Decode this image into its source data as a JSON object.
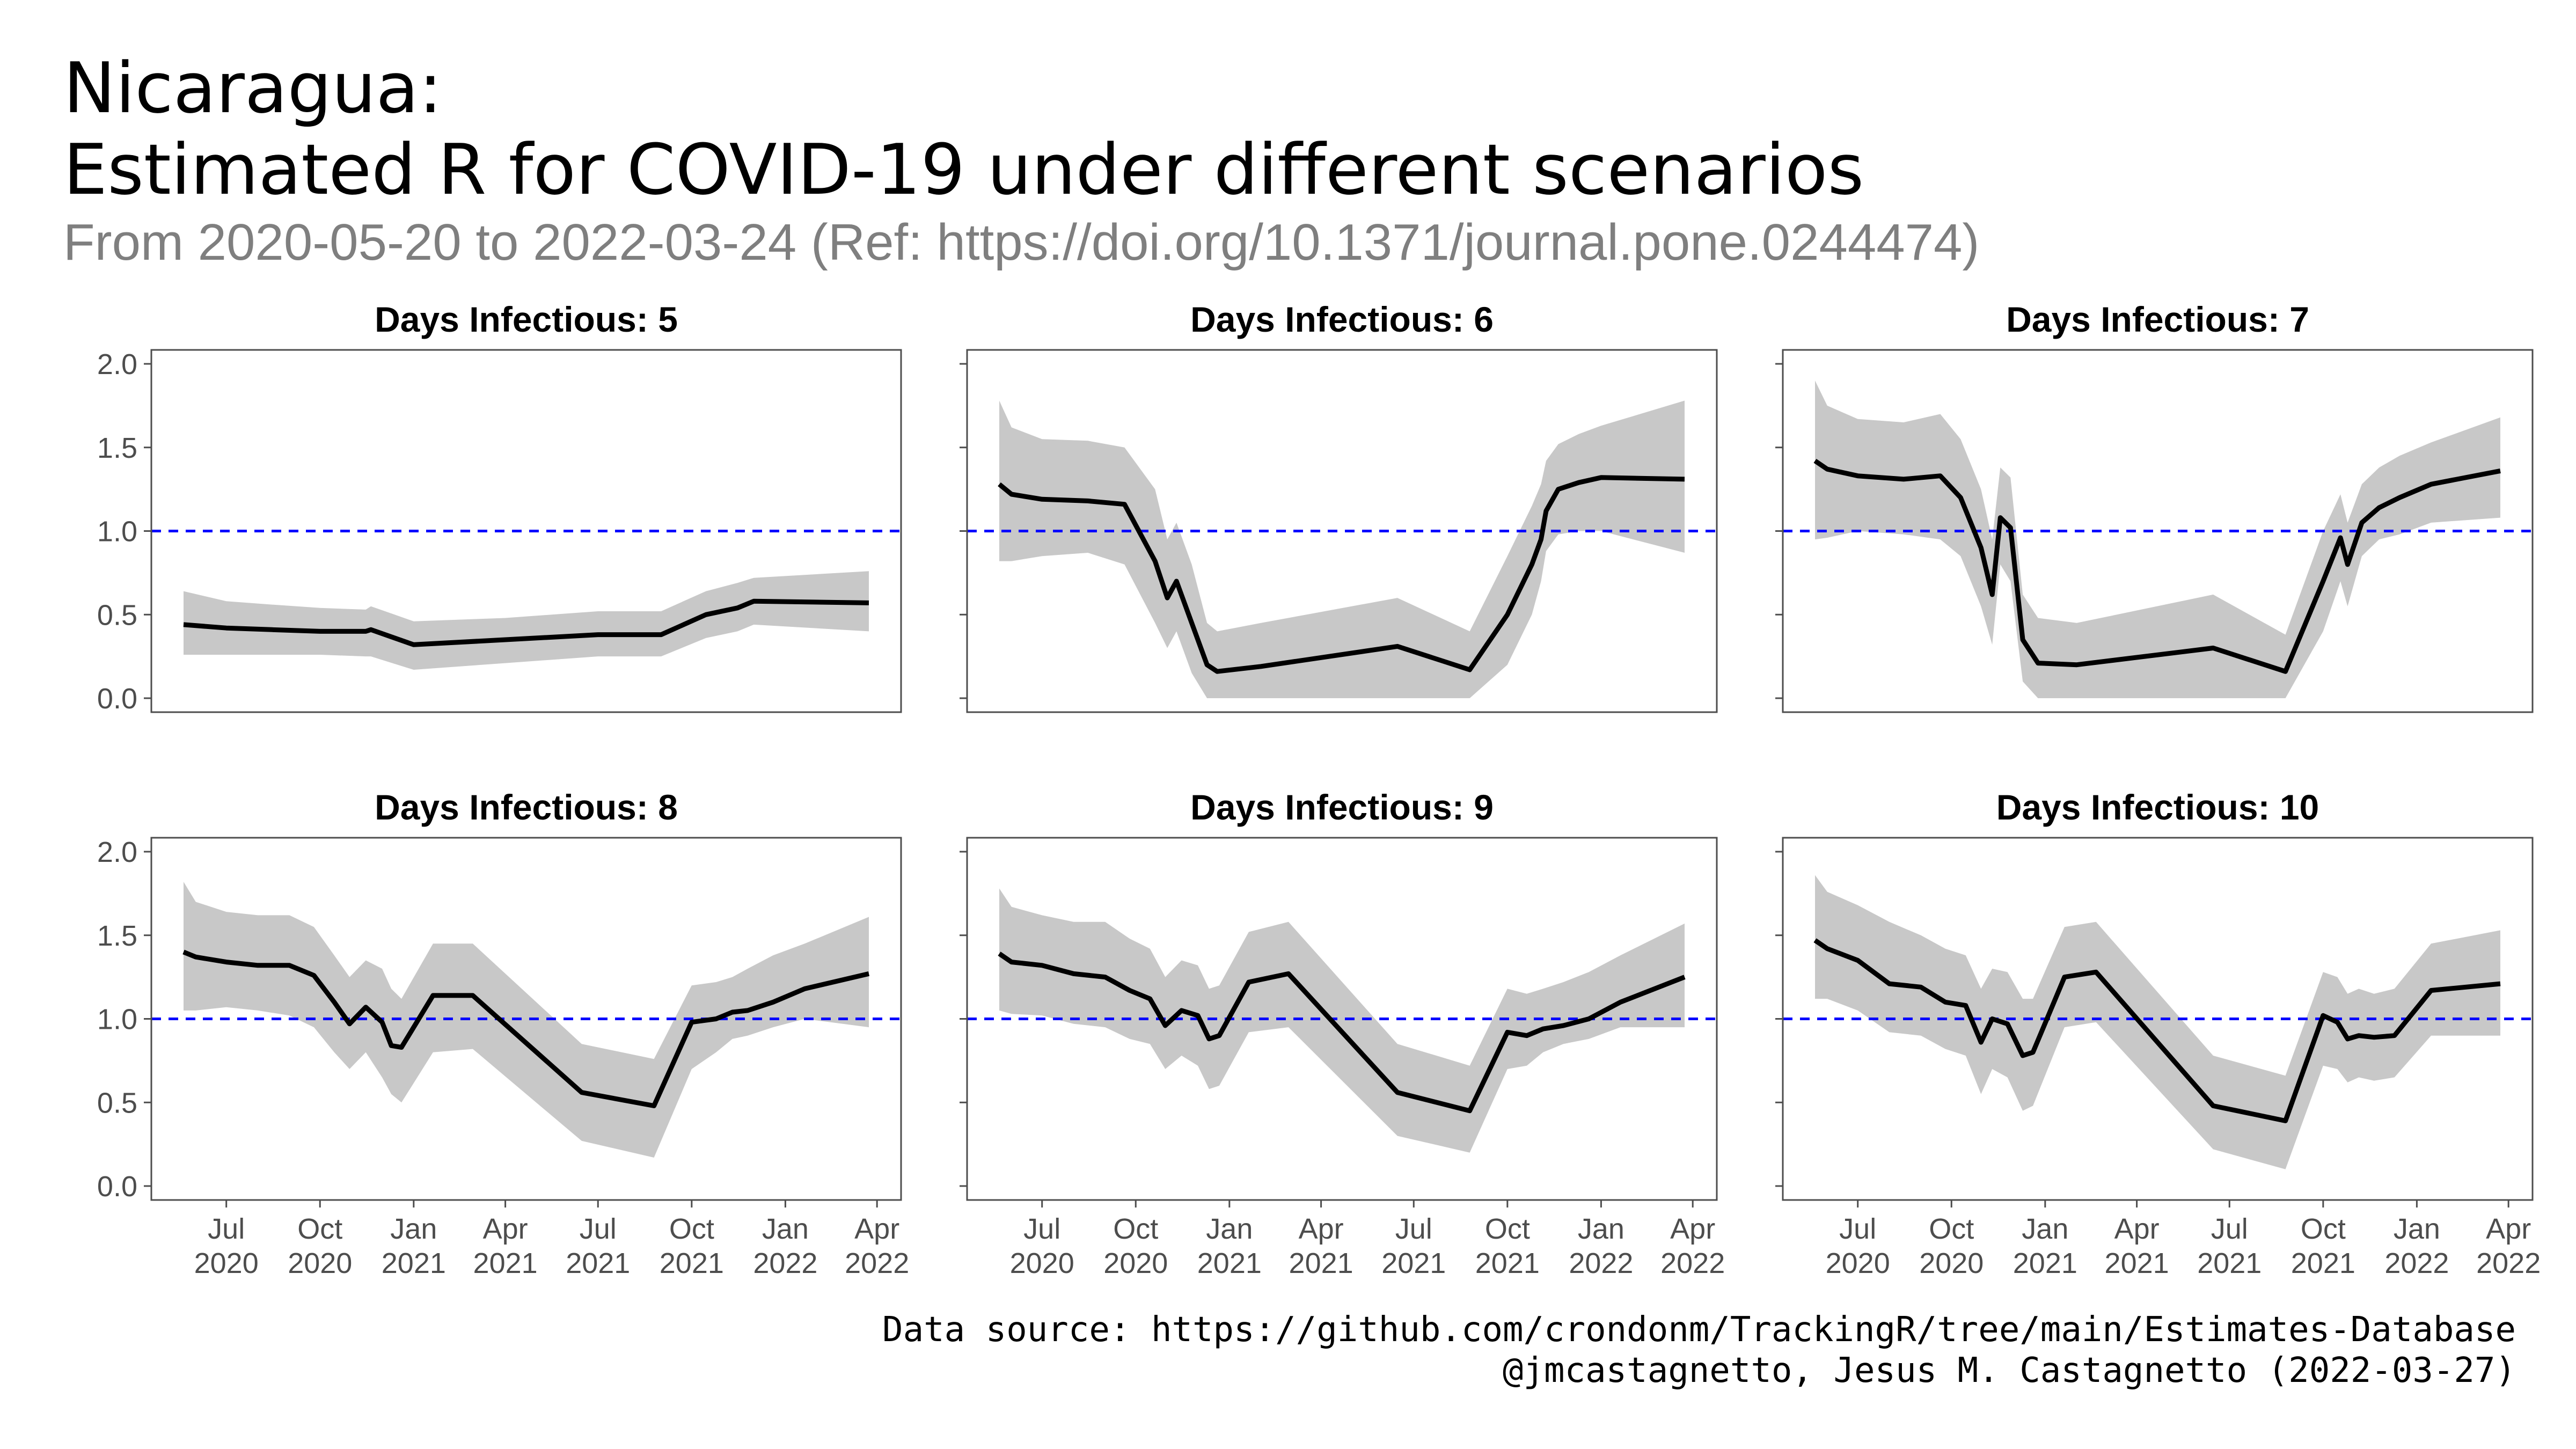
{
  "header": {
    "title_line1": "Nicaragua:",
    "title_line2": "Estimated R for COVID-19 under different scenarios",
    "subtitle": "From 2020-05-20 to 2022-03-24 (Ref: https://doi.org/10.1371/journal.pone.0244474)"
  },
  "caption": {
    "line1": "Data source: https://github.com/crondonm/TrackingR/tree/main/Estimates-Database",
    "line2": "@jmcastagnetto, Jesus M. Castagnetto (2022-03-27)"
  },
  "colors": {
    "line": "#000000",
    "ribbon": "#c8c8c8",
    "reference": "#0000ff",
    "panel_border": "#4d4d4d"
  },
  "chart_data": {
    "type": "line",
    "layout": "facet grid, 2 rows x 3 columns",
    "ylim": [
      0,
      2
    ],
    "yticks": [
      "0.0",
      "0.5",
      "1.0",
      "1.5",
      "2.0"
    ],
    "xlim": [
      "2020-05-20",
      "2022-03-24"
    ],
    "xticks": [
      {
        "date": "2020-07-01",
        "label": [
          "Jul",
          "2020"
        ]
      },
      {
        "date": "2020-10-01",
        "label": [
          "Oct",
          "2020"
        ]
      },
      {
        "date": "2021-01-01",
        "label": [
          "Jan",
          "2021"
        ]
      },
      {
        "date": "2021-04-01",
        "label": [
          "Apr",
          "2021"
        ]
      },
      {
        "date": "2021-07-01",
        "label": [
          "Jul",
          "2021"
        ]
      },
      {
        "date": "2021-10-01",
        "label": [
          "Oct",
          "2021"
        ]
      },
      {
        "date": "2022-01-01",
        "label": [
          "Jan",
          "2022"
        ]
      },
      {
        "date": "2022-04-01",
        "label": [
          "Apr",
          "2022"
        ]
      }
    ],
    "reference_line": 1.0,
    "grid": false,
    "panels": [
      {
        "title": "Days Infectious: 5",
        "x": [
          "2020-05-20",
          "2020-07-01",
          "2020-08-15",
          "2020-10-01",
          "2020-11-15",
          "2020-11-20",
          "2021-01-01",
          "2021-04-01",
          "2021-07-01",
          "2021-09-01",
          "2021-10-15",
          "2021-11-15",
          "2021-12-01",
          "2022-03-24"
        ],
        "y": [
          0.44,
          0.42,
          0.41,
          0.4,
          0.4,
          0.41,
          0.32,
          0.35,
          0.38,
          0.38,
          0.5,
          0.54,
          0.58,
          0.57
        ],
        "lower": [
          0.26,
          0.26,
          0.26,
          0.26,
          0.25,
          0.25,
          0.17,
          0.21,
          0.25,
          0.25,
          0.36,
          0.4,
          0.44,
          0.4
        ],
        "upper": [
          0.64,
          0.58,
          0.56,
          0.54,
          0.53,
          0.55,
          0.46,
          0.48,
          0.52,
          0.52,
          0.64,
          0.69,
          0.72,
          0.76
        ]
      },
      {
        "title": "Days Infectious: 6",
        "x": [
          "2020-05-20",
          "2020-06-01",
          "2020-07-01",
          "2020-08-15",
          "2020-09-20",
          "2020-10-20",
          "2020-11-01",
          "2020-11-10",
          "2020-11-25",
          "2020-12-10",
          "2020-12-20",
          "2021-02-01",
          "2021-06-15",
          "2021-08-25",
          "2021-10-01",
          "2021-10-25",
          "2021-11-03",
          "2021-11-08",
          "2021-11-20",
          "2021-12-10",
          "2022-01-01",
          "2022-03-24"
        ],
        "y": [
          1.28,
          1.22,
          1.19,
          1.18,
          1.16,
          0.82,
          0.6,
          0.7,
          0.45,
          0.2,
          0.16,
          0.19,
          0.31,
          0.17,
          0.5,
          0.8,
          0.95,
          1.12,
          1.25,
          1.29,
          1.32,
          1.31
        ],
        "lower": [
          0.82,
          0.82,
          0.85,
          0.87,
          0.8,
          0.45,
          0.3,
          0.4,
          0.15,
          0.0,
          0.0,
          0.0,
          0.0,
          0.0,
          0.2,
          0.5,
          0.7,
          0.88,
          0.98,
          1.0,
          1.0,
          0.87
        ],
        "upper": [
          1.78,
          1.62,
          1.55,
          1.54,
          1.5,
          1.25,
          0.95,
          1.05,
          0.8,
          0.45,
          0.4,
          0.45,
          0.6,
          0.4,
          0.85,
          1.15,
          1.28,
          1.42,
          1.52,
          1.58,
          1.63,
          1.78
        ]
      },
      {
        "title": "Days Infectious: 7",
        "x": [
          "2020-05-20",
          "2020-06-01",
          "2020-07-01",
          "2020-08-15",
          "2020-09-20",
          "2020-10-10",
          "2020-10-30",
          "2020-11-10",
          "2020-11-18",
          "2020-11-28",
          "2020-12-10",
          "2020-12-25",
          "2021-02-01",
          "2021-06-15",
          "2021-08-25",
          "2021-10-01",
          "2021-10-18",
          "2021-10-25",
          "2021-11-08",
          "2021-11-25",
          "2021-12-15",
          "2022-01-15",
          "2022-03-24"
        ],
        "y": [
          1.42,
          1.37,
          1.33,
          1.31,
          1.33,
          1.2,
          0.9,
          0.62,
          1.08,
          1.02,
          0.35,
          0.21,
          0.2,
          0.3,
          0.16,
          0.7,
          0.96,
          0.8,
          1.05,
          1.14,
          1.2,
          1.28,
          1.36
        ],
        "lower": [
          0.95,
          0.96,
          1.0,
          0.98,
          0.95,
          0.85,
          0.55,
          0.32,
          0.8,
          0.7,
          0.1,
          0.0,
          0.0,
          0.0,
          0.0,
          0.4,
          0.7,
          0.55,
          0.85,
          0.95,
          0.98,
          1.05,
          1.08
        ],
        "upper": [
          1.9,
          1.75,
          1.67,
          1.65,
          1.7,
          1.55,
          1.25,
          0.95,
          1.38,
          1.32,
          0.62,
          0.48,
          0.45,
          0.62,
          0.38,
          1.0,
          1.22,
          1.05,
          1.28,
          1.38,
          1.45,
          1.53,
          1.68
        ]
      },
      {
        "title": "Days Infectious: 8",
        "x": [
          "2020-05-20",
          "2020-06-01",
          "2020-07-01",
          "2020-08-01",
          "2020-09-01",
          "2020-09-25",
          "2020-10-15",
          "2020-10-30",
          "2020-11-15",
          "2020-12-01",
          "2020-12-10",
          "2020-12-20",
          "2021-01-20",
          "2021-02-28",
          "2021-06-15",
          "2021-08-25",
          "2021-10-01",
          "2021-10-25",
          "2021-11-10",
          "2021-11-25",
          "2021-12-20",
          "2022-01-20",
          "2022-03-24"
        ],
        "y": [
          1.4,
          1.37,
          1.34,
          1.32,
          1.32,
          1.26,
          1.1,
          0.97,
          1.07,
          0.98,
          0.84,
          0.83,
          1.14,
          1.14,
          0.56,
          0.48,
          0.98,
          1.0,
          1.04,
          1.05,
          1.1,
          1.18,
          1.27
        ],
        "lower": [
          1.05,
          1.05,
          1.07,
          1.05,
          1.02,
          0.95,
          0.8,
          0.7,
          0.8,
          0.65,
          0.55,
          0.5,
          0.8,
          0.82,
          0.27,
          0.17,
          0.7,
          0.8,
          0.88,
          0.9,
          0.95,
          1.0,
          0.95
        ],
        "upper": [
          1.82,
          1.7,
          1.64,
          1.62,
          1.62,
          1.55,
          1.38,
          1.25,
          1.35,
          1.3,
          1.18,
          1.12,
          1.45,
          1.45,
          0.85,
          0.76,
          1.2,
          1.22,
          1.25,
          1.3,
          1.38,
          1.45,
          1.61
        ]
      },
      {
        "title": "Days Infectious: 9",
        "x": [
          "2020-05-20",
          "2020-06-01",
          "2020-07-01",
          "2020-08-01",
          "2020-09-01",
          "2020-09-25",
          "2020-10-15",
          "2020-10-30",
          "2020-11-15",
          "2020-12-01",
          "2020-12-12",
          "2020-12-22",
          "2021-01-20",
          "2021-02-28",
          "2021-06-15",
          "2021-08-25",
          "2021-10-01",
          "2021-10-20",
          "2021-11-05",
          "2021-11-25",
          "2021-12-20",
          "2022-01-20",
          "2022-03-24"
        ],
        "y": [
          1.39,
          1.34,
          1.32,
          1.27,
          1.25,
          1.17,
          1.12,
          0.96,
          1.05,
          1.02,
          0.88,
          0.9,
          1.22,
          1.27,
          0.56,
          0.45,
          0.92,
          0.9,
          0.94,
          0.96,
          1.0,
          1.1,
          1.25
        ],
        "lower": [
          1.05,
          1.03,
          1.02,
          0.97,
          0.95,
          0.88,
          0.85,
          0.7,
          0.78,
          0.72,
          0.58,
          0.6,
          0.92,
          0.95,
          0.3,
          0.2,
          0.7,
          0.72,
          0.8,
          0.85,
          0.88,
          0.95,
          0.95
        ],
        "upper": [
          1.78,
          1.67,
          1.62,
          1.58,
          1.58,
          1.48,
          1.42,
          1.25,
          1.35,
          1.32,
          1.18,
          1.2,
          1.52,
          1.58,
          0.85,
          0.72,
          1.18,
          1.15,
          1.18,
          1.22,
          1.28,
          1.38,
          1.57
        ]
      },
      {
        "title": "Days Infectious: 10",
        "x": [
          "2020-05-20",
          "2020-06-01",
          "2020-07-01",
          "2020-08-01",
          "2020-09-01",
          "2020-09-25",
          "2020-10-15",
          "2020-10-30",
          "2020-11-10",
          "2020-11-25",
          "2020-12-10",
          "2020-12-20",
          "2021-01-20",
          "2021-02-20",
          "2021-06-15",
          "2021-08-25",
          "2021-10-01",
          "2021-10-15",
          "2021-10-25",
          "2021-11-05",
          "2021-11-20",
          "2021-12-10",
          "2022-01-15",
          "2022-03-24"
        ],
        "y": [
          1.47,
          1.42,
          1.35,
          1.21,
          1.19,
          1.1,
          1.08,
          0.86,
          1.0,
          0.97,
          0.78,
          0.8,
          1.25,
          1.28,
          0.48,
          0.39,
          1.02,
          0.98,
          0.88,
          0.9,
          0.89,
          0.9,
          1.17,
          1.21
        ],
        "lower": [
          1.12,
          1.12,
          1.05,
          0.92,
          0.9,
          0.82,
          0.78,
          0.55,
          0.7,
          0.65,
          0.45,
          0.48,
          0.95,
          0.98,
          0.22,
          0.1,
          0.72,
          0.7,
          0.62,
          0.65,
          0.63,
          0.65,
          0.9,
          0.9
        ],
        "upper": [
          1.86,
          1.76,
          1.68,
          1.58,
          1.5,
          1.42,
          1.38,
          1.18,
          1.3,
          1.28,
          1.12,
          1.12,
          1.55,
          1.58,
          0.78,
          0.66,
          1.28,
          1.25,
          1.15,
          1.18,
          1.15,
          1.18,
          1.45,
          1.53
        ]
      }
    ]
  }
}
